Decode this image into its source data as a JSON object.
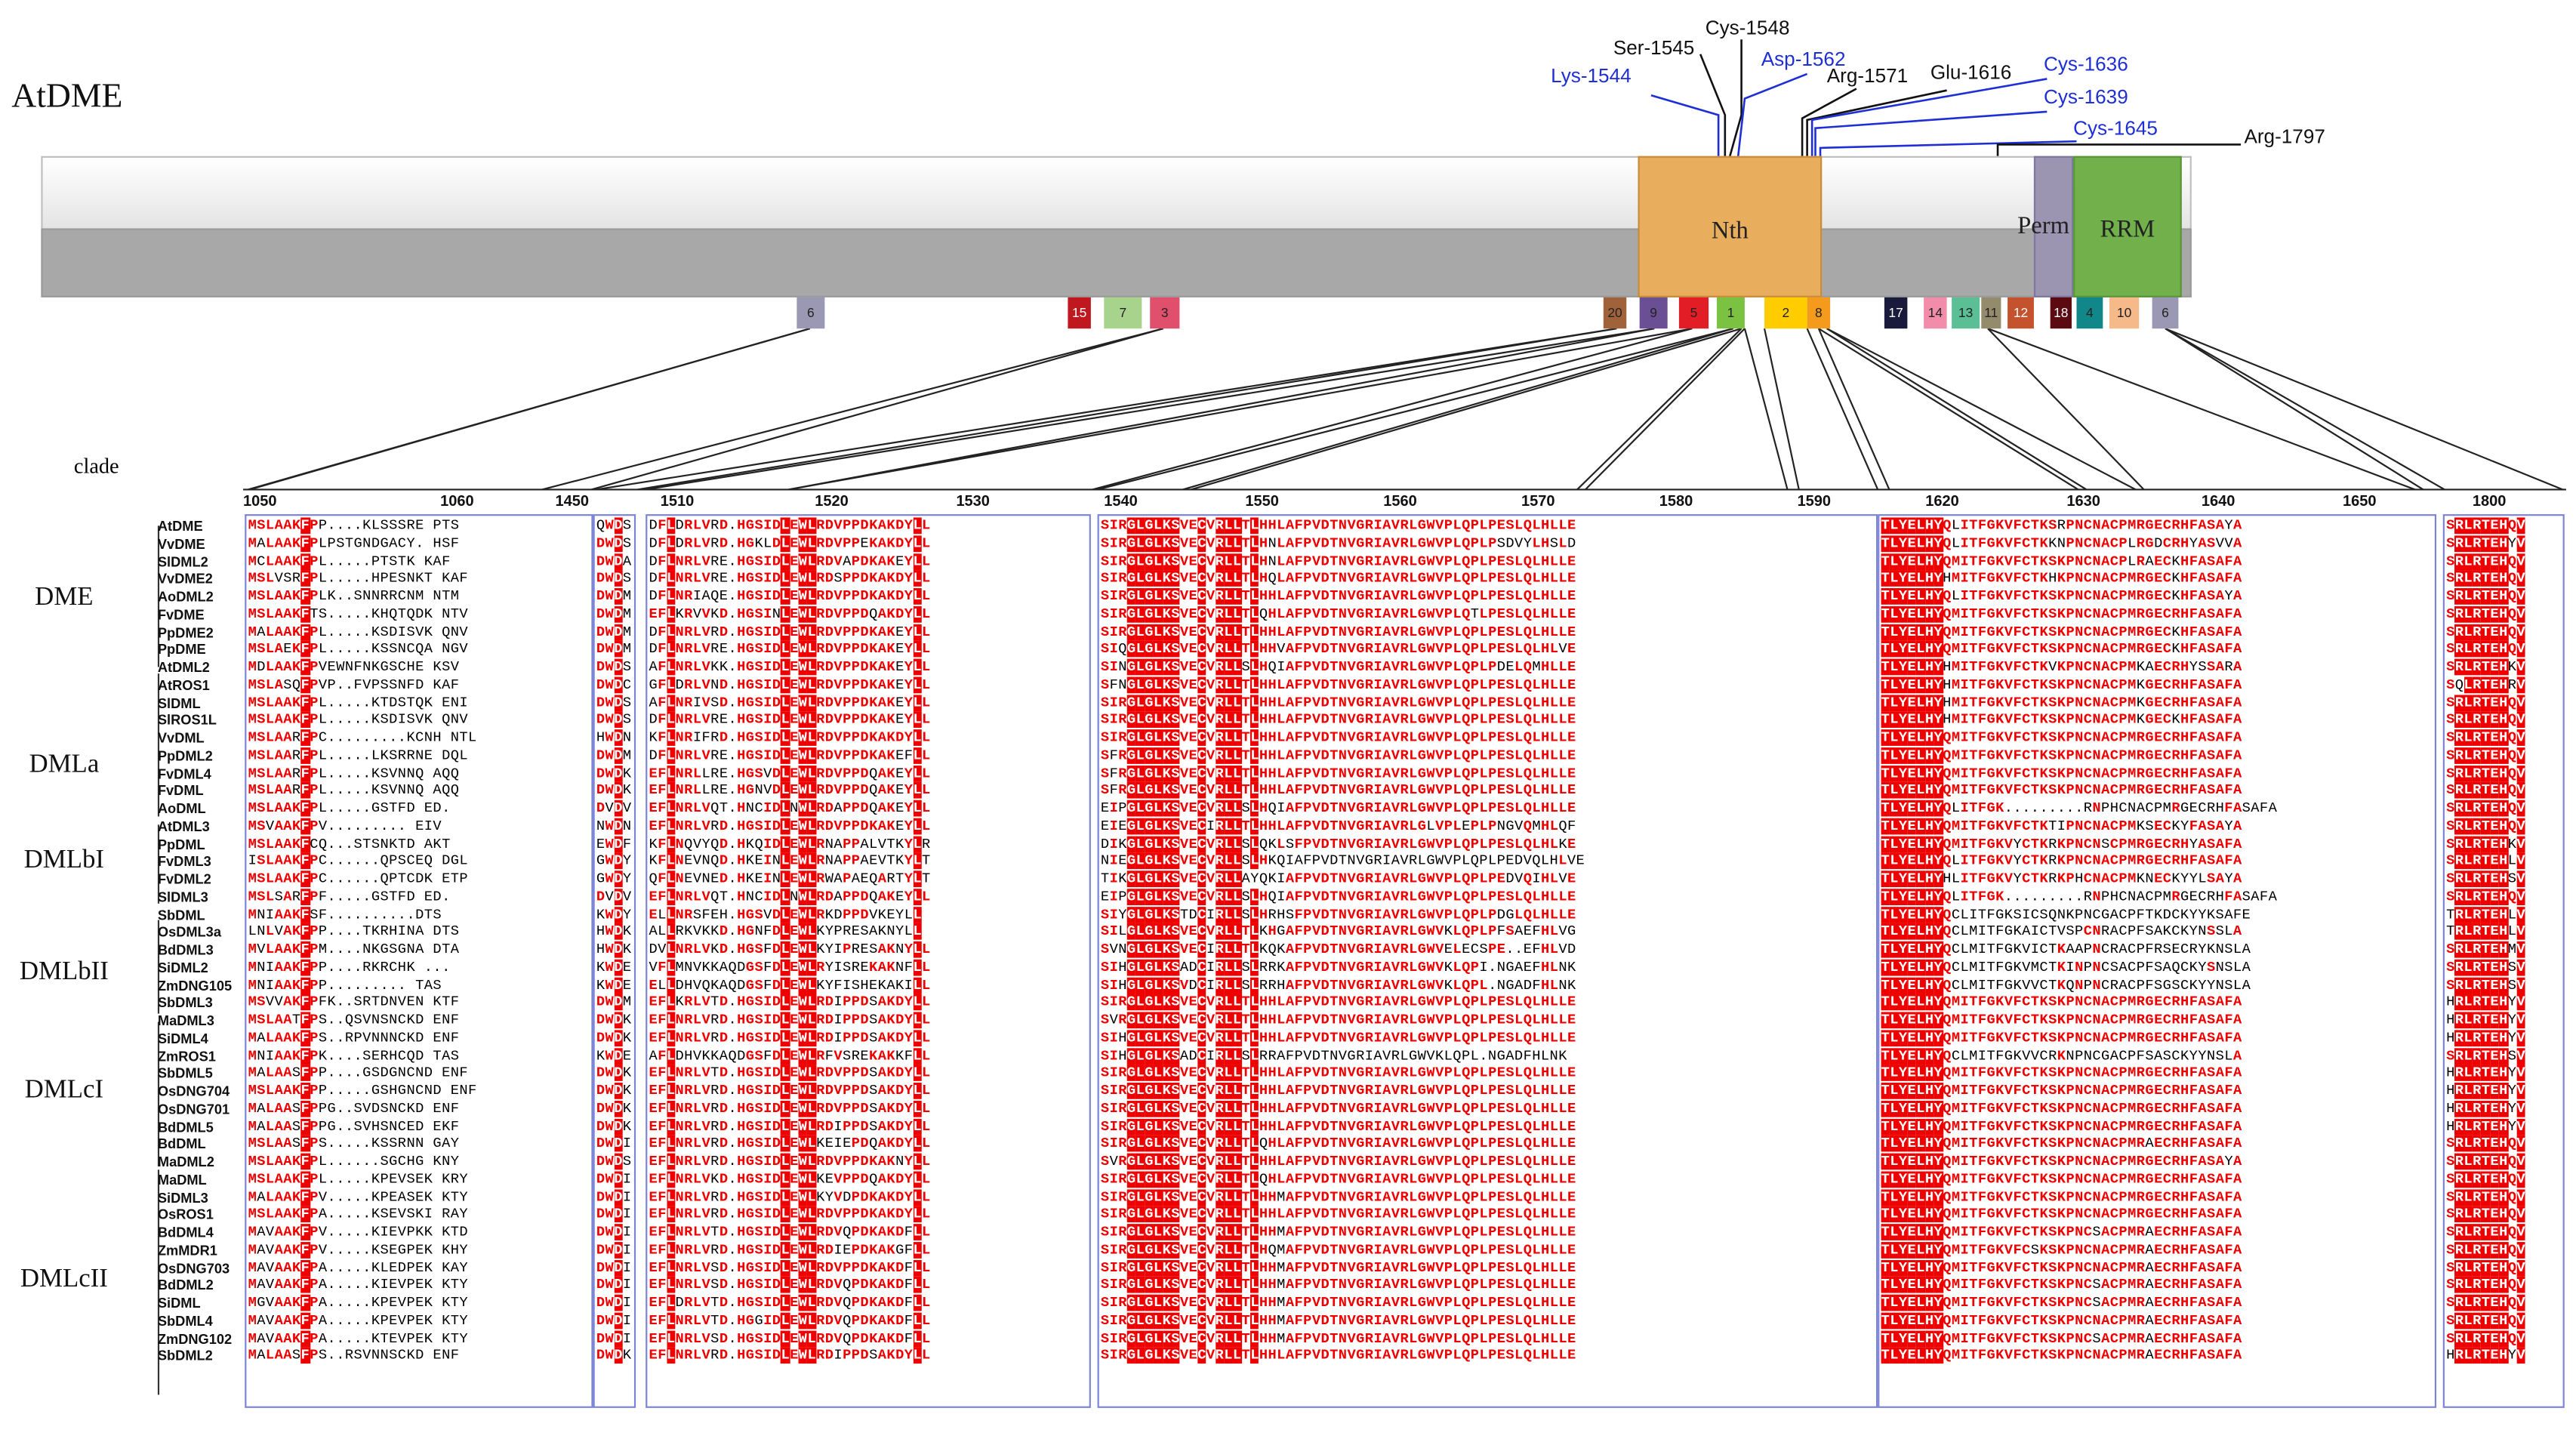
{
  "title": "AtDME",
  "clade_header": "clade",
  "domains": [
    "Nth",
    "Perm",
    "RRM"
  ],
  "sites": [
    {
      "label": "Ser-1545",
      "color": "#111111"
    },
    {
      "label": "Cys-1548",
      "color": "#111111"
    },
    {
      "label": "Lys-1544",
      "color": "#1f2fd6"
    },
    {
      "label": "Asp-1562",
      "color": "#1f2fd6"
    },
    {
      "label": "Arg-1571",
      "color": "#111111"
    },
    {
      "label": "Glu-1616",
      "color": "#111111"
    },
    {
      "label": "Cys-1636",
      "color": "#1f2fd6"
    },
    {
      "label": "Cys-1639",
      "color": "#1f2fd6"
    },
    {
      "label": "Cys-1645",
      "color": "#1f2fd6"
    },
    {
      "label": "Arg-1797",
      "color": "#111111"
    }
  ],
  "motifs": [
    {
      "label": "6",
      "color": "#9a98b3"
    },
    {
      "label": "15",
      "color": "#c0181f"
    },
    {
      "label": "7",
      "color": "#a7d38c"
    },
    {
      "label": "3",
      "color": "#e0506c"
    },
    {
      "label": "20",
      "color": "#a0623a"
    },
    {
      "label": "9",
      "color": "#6a4f95"
    },
    {
      "label": "5",
      "color": "#e21d25"
    },
    {
      "label": "1",
      "color": "#7cc242"
    },
    {
      "label": "2",
      "color": "#ffcc00"
    },
    {
      "label": "8",
      "color": "#f49a1c"
    },
    {
      "label": "17",
      "color": "#1a1a3d"
    },
    {
      "label": "14",
      "color": "#f28cab"
    },
    {
      "label": "13",
      "color": "#5bbf95"
    },
    {
      "label": "11",
      "color": "#948a6c"
    },
    {
      "label": "12",
      "color": "#c3522d"
    },
    {
      "label": "18",
      "color": "#5b0a12"
    },
    {
      "label": "4",
      "color": "#12878a"
    },
    {
      "label": "10",
      "color": "#f6b98a"
    },
    {
      "label": "6",
      "color": "#9a98b3"
    }
  ],
  "positions": [
    "1050",
    "1060",
    "1450",
    "1510",
    "1520",
    "1530",
    "1540",
    "1550",
    "1560",
    "1570",
    "1580",
    "1590",
    "1620",
    "1630",
    "1640",
    "1650",
    "1800"
  ],
  "clades": [
    "DME",
    "DMLa",
    "DMLbI",
    "DMLbII",
    "DMLcI",
    "DMLcII"
  ],
  "sequences": [
    "AtDME",
    "VvDME",
    "SlDML2",
    "VvDME2",
    "AoDML2",
    "FvDME",
    "PpDME2",
    "PpDME",
    "AtDML2",
    "AtROS1",
    "SlDML",
    "SlROS1L",
    "VvDML",
    "PpDML2",
    "FvDML4",
    "FvDML",
    "AoDML",
    "AtDML3",
    "PpDML",
    "FvDML3",
    "FvDML2",
    "SlDML3",
    "SbDML",
    "OsDML3a",
    "BdDML3",
    "SiDML2",
    "ZmDNG105",
    "SbDML3",
    "MaDML3",
    "SiDML4",
    "ZmROS1",
    "SbDML5",
    "OsDNG704",
    "OsDNG701",
    "BdDML5",
    "BdDML",
    "MaDML2",
    "MaDML",
    "SiDML3",
    "OsROS1",
    "BdDML4",
    "ZmMDR1",
    "OsDNG703",
    "BdDML2",
    "SiDML",
    "SbDML4",
    "ZmDNG102",
    "SbDML2"
  ],
  "alignment": {
    "b1": [
      "MSLAAKFPP....KLSSSRE PTS",
      "MALAAKFPLPSTGNDGACY. HSF",
      "MCLAAKFPL.....PTSTK KAF",
      "MSLVSRFPL.....HPESNKT KAF",
      "MSLAAKFPLK..SNNRRCNM NTM",
      "MSLAAKFTS.....KHQTQDK NTV",
      "MALAAKFPL.....KSDISVK QNV",
      "MSLAEKFPL.....KSSNCQA NGV",
      "MDLAAKFPVEWNFNKGSCHE KSV",
      "MSLASQFPVP..FVPSSNFD KAF",
      "MSLAAKFPL.....KTDSTQK ENI",
      "MSLAAKFPL.....KSDISVK QNV",
      "MSLAARFPC.........KCNH NTL",
      "MSLAARFPL.....LKSRRNE DQL",
      "MSLAARFPL.....KSVNNQ AQQ",
      "MSLAARFPL.....KSVNNQ AQQ",
      "MSLAAKFPL.....GSTFD ED.",
      "MSVAAKFPV......... EIV",
      "MSLAAKFCQ...STSNKTD AKT",
      "ISLAAKFPC......QPSCEQ DGL",
      "MSLAAKFPC......QPTCDK ETP",
      "MSLSARFPF.....GSTFD ED.",
      "MNIAAKFSF..........DTS",
      "LNLVAKFPP....TKRHINA DTS",
      "MVLAAKFPM....NKGSGNA DTA",
      "MNIAAKFPP....RKRCHK ...",
      "MNIAAKFPP......... TAS",
      "MSVVAKFPFK..SRTDNVEN KTF",
      "MSLAATFPS..QSVNSNCKD ENF",
      "MALAAKFPS..RPVNNNCKD ENF",
      "MNIAAKFPK....SERHCQD TAS",
      "MALAASFPP....GSDGNCND ENF",
      "MSLAAKFPP.....GSHGNCND ENF",
      "MALAASFPPG..SVDSNCKD ENF",
      "MALAASFPPG..SVHSNCED EKF",
      "MSLAASFPS.....KSSRNN GAY",
      "MSLAAKFPL......SGCHG KNY",
      "MSLAAKFPL.....KPEVSEK KRY",
      "MALAAKFPV.....KPEASEK KTY",
      "MSLAAKFPA.....KSEVSKI RAY",
      "MAVAAKFPV.....KIEVPKK KTD",
      "MAVAAKFPV.....KSEGPEK KHY",
      "MAVAAKFPA.....KLEDPEK KAY",
      "MAVAAKFPA.....KIEVPEK KTY",
      "MGVAAKFPA.....KPEVPEK KTY",
      "MAVAAKFPA.....KPEVPEK KTY",
      "MAVAAKFPA.....KTEVPEK KTY",
      "MALAASFPS..RSVNNSCKD ENF"
    ],
    "b2": [
      "QWDS",
      "DWDS",
      "DWDA",
      "DWDS",
      "DWDM",
      "DWDM",
      "DWDM",
      "DWDM",
      "DWDS",
      "DWDC",
      "DWDS",
      "DWDS",
      "HWDN",
      "DWDM",
      "DWDK",
      "DWDK",
      "DVDV",
      "NWDN",
      "EWDF",
      "GWDY",
      "GWDY",
      "DVDV",
      "KWDY",
      "HWDK",
      "HWDK",
      "KWDE",
      "KWDE",
      "DWDM",
      "DWDK",
      "DWDK",
      "KWDE",
      "DWDK",
      "DWDK",
      "DWDK",
      "DWDK",
      "DWDI",
      "DWDS",
      "DWDI",
      "DWDI",
      "DWDI",
      "DWDI",
      "DWDI",
      "DWDI",
      "DWDI",
      "DWDI",
      "DWDI",
      "DWDI",
      "DWDK"
    ],
    "b3": [
      "DFLDRLVRD.HGSIDLEWLRDVPPDKAKDYLL",
      "DFLDRLVRD.HGKLDLEWLRDVPPEKAKDYLL",
      "DFLNRLVRE.HGSIDLEWLRDVAPDKAKEYLL",
      "DFLNRLVRE.HGSIDLEWLRDSPPDKAKDYLL",
      "DFLNRIAQE.HGSIDLEWLRDVPPDKAKDYLL",
      "EFLKRVVKD.HGSINLEWLRDVPPDQAKDYLL",
      "DFLNRLVRD.HGSIDLEWLRDVPPDKAKEYLL",
      "DFLNRLVRE.HGSIDLEWLRDVPPDKAKEYLL",
      "AFLNRLVKK.HGSIDLEWLRDVPPDKAKEYLL",
      "GFLDRLVND.HGSIDLEWLRDVPPDKAKEYLL",
      "AFLNRIVSD.HGSIDLEWLRDVPPDKAKEYLL",
      "DFLNRLVRE.HGSIDLEWLRDVPPDKAKEYLL",
      "KFLNRIFRD.HGSIDLEWLRDVPPDKAKDYLL",
      "DFLNRLVRE.HGSIDLEWLRDVPPDKAKEFLL",
      "EFLNRLLRE.HGSVDLEWLRDVPPDQAKEYLL",
      "EFLNRLLRE.HGNVDLEWLRDVPPDQAKEYLL",
      "EFLNRLVQT.HNCIDLNWLRDAPPDQAKEYLL",
      "EFLNRLVRD.HGSIDLEWLRDVPPDKAKEYLL",
      "KFLNQVYQD.HKQIDLEWLRNAPPALVTKYLR",
      "KFLNEVNQD.HKEINLEWLRNAPPAEVTKYLT",
      "QFLNEVNED.HKEINLEWLRWAPAEQARTYLT",
      "EFLNRLVQT.HNCIDLNWLRDAPPDQAKEYLL",
      "ELLNRSFEH.HGSVDLEWLRKDPPDVKEYLL",
      "ALLRKVKKD.HGNFDLEWLKYPRESAKNYLL",
      "DVLNRLVKD.HGSFDLEWLKYIPRESAKNYLL",
      "VFLMNVKKAQDGSFDLEWLRYISREKAKNFLL",
      "ELLDHVQKAQDGSFDLEWLKYFISHEKAKILL",
      "EFLKRLVTD.HGSIDLEWLRDIPPDSAKDYLL",
      "EFLNRLVRD.HGSIDLEWLRDIPPDSAKDYLL",
      "EFLNRLVRD.HGSIDLEWLRDIPPDSAKDYLL",
      "AFLDHVKKAQDGSFDLEWLRFVSREKAKKFLL",
      "EFLNRLVTD.HGSIDLEWLRDVPPDSAKDYLL",
      "EFLNRLVRD.HGSIDLEWLRDVPPDSAKDYLL",
      "EFLNRLVRD.HGSIDLEWLRDVPPDSAKDYLL",
      "EFLNRLVRD.HGSIDLEWLRDIPPDSAKDYLL",
      "EFLNRLVRD.HGSIDLEWLKEIEPDQAKDYLL",
      "EFLNRLVRD.HGSIDLEWLRDVPPDKAKNYLL",
      "EFLNRLVKD.HGSIDLEWLKEVPPDQAKDYLL",
      "EFLNRLVRD.HGSIDLEWLKYVDPDKAKDYLL",
      "EFLNRLVRD.HGSIDLEWLRDVPPDKAKDYLL",
      "EFLNRLVTD.HGSIDLEWLRDVQPDKAKDFLL",
      "EFLNRLVRD.HGSIDLEWLRDIEPDKAKGFLL",
      "EFLNRLVSD.HGSIDLEWLRDVPPDKAKDFLL",
      "EFLNRLVSD.HGSIDLEWLRDVQPDKAKDFLL",
      "EFLDRLVTD.HGSIDLEWLRDVQPDKAKDFLL",
      "EFLNRLVTD.HGGIDLEWLRDVQPDKAKDFLL",
      "EFLNRLVSD.HGSIDLEWLRDVQPDKAKDFLL",
      "EFLNRLVRD.HGSIDLEWLRDIPPDSAKDYLL"
    ],
    "b4": [
      "SIRGLGLKSVECVRLLTLHHLAFPVDTNVGRIAVRLGWVPLQPLPESLQLHLLE",
      "SIRGLGLKSVECVRLLTLHNLAFPVDTNVGRIAVRLGWVPLQPLPSDVYLHSLD",
      "SIRGLGLKSVECVRLLTLHNLAFPVDTNVGRIAVRLGWVPLQPLPESLQLHLLE",
      "SIRGLGLKSVECVRLLTLHQLAFPVDTNVGRIAVRLGWVPLQPLPESLQLHLLE",
      "SIRGLGLKSVECVRLLTLHHLAFPVDTNVGRIAVRLGWVPLQPLPESLQLHLLE",
      "SIRGLGLKSVECVRLLTLQHLAFPVDTNVGRIAVRLGWVPLQTLPESLQLHLLE",
      "SIRGLGLKSVECVRLLTLHHLAFPVDTNVGRIAVRLGWVPLQPLPESLQLHLLE",
      "SIQGLGLKSVECVRLLTLHHVAFPVDTNVGRIAVRLGWVPLQPLPESLQLHLVE",
      "SINGLGLKSVECVRLLSLHQIAFPVDTNVGRIAVRLGWVPLQPLPDELQMHLLE",
      "SFNGLGLKSVECVRLLTLHHLAFPVDTNVGRIAVRLGWVPLQPLPESLQLHLLE",
      "SIRGLGLKSVECVRLLTLHHLAFPVDTNVGRIAVRLGWVPLQPLPESLQLHLLE",
      "SIRGLGLKSVECVRLLTLHHLAFPVDTNVGRIAVRLGWVPLQPLPESLQLHLLE",
      "SIRGLGLKSVECVRLLTLHHLAFPVDTNVGRIAVRLGWVPLQPLPESLQLHLLE",
      "SFRGLGLKSVECVRLLTLHHLAFPVDTNVGRIAVRLGWVPLQPLPESLQLHLLE",
      "SFRGLGLKSVECVRLLTLHHLAFPVDTNVGRIAVRLGWVPLQPLPESLQLHLLE",
      "SFRGLGLKSVECVRLLTLHHLAFPVDTNVGRIAVRLGWVPLQPLPESLQLHLLE",
      "EIPGLGLKSVECVRLLSLHQIAFPVDTNVGRIAVRLGWVPLQPLPESLQLHLLE",
      "EIEGLGLKSVECIRLLTLHHLAFPVDTNVGRIAVRLGLVPLEPLPNGVQMHLQF",
      "DIKGLGLKSVECVRLLSLQKLSFPVDTNVGRIAVRLGWVPLQPLPESLQLHLKE",
      "NIEGLGLKSVECVRLLSLHKQIAFPVDTNVGRIAVRLGWVPLQPLPEDVQLHLVE",
      "TIKGLGLKSVECVRLLAYQKIAFPVDTNVGRIAVRLGWVPLQPLPEDVQIHLVE",
      "EIPGLGLKSVECVRLLSLHQIAFPVDTNVGRIAVRLGWVPLQPLPESLQLHLLE",
      "SIYGLGLKSTDCIRLLSLHRHSFPVDTNVGRIAVRLGWVPLQPLPDGLQLHLLE",
      "SILGLGLKSVECVRLLTLKHGAFPVDTNVGRIAVRLGWVKLQPLPFSAEFHLVG",
      "SVNGLGLKSVECIRLLTLKQKAFPVDTNVGRIAVRLGWVELECSPE..EFHLVD",
      "SIHGLGLKSADCIRLLSLRRKAFPVDTNVGRIAVRLGWVKLQPI.NGAEFHLNK",
      "SIHGLGLKSVDCIRLLSLRRHAFPVDTNVGRIAVRLGWVKLQPL.NGADFHLNK",
      "SIRGLGLKSVECVRLLTLHHLAFPVDTNVGRIAVRLGWVPLQPLPESLQLHLLE",
      "SVRGLGLKSVECVRLLTLHHLAFPVDTNVGRIAVRLGWVPLQPLPESLQLHLLE",
      "SIHGLGLKSVECVRLLTLHHLAFPVDTNVGRIAVRLGWVPLQPLPESLQLHLLE",
      "SIHGLGLKSADCIRLLSLRRAFPVDTNVGRIAVRLGWVKLQPL.NGADFHLNK",
      "SIRGLGLKSVECVRLLTLHHLAFPVDTNVGRIAVRLGWVPLQPLPESLQLHLLE",
      "SIRGLGLKSVECVRLLTLHHLAFPVDTNVGRIAVRLGWVPLQPLPESLQLHLLE",
      "SIRGLGLKSVECVRLLTLHHLAFPVDTNVGRIAVRLGWVPLQPLPESLQLHLLE",
      "SIRGLGLKSVECVRLLTLHHLAFPVDTNVGRIAVRLGWVPLQPLPESLQLHLLE",
      "SIRGLGLKSVECVRLLTLQHLAFPVDTNVGRIAVRLGWVPLQPLPESLQLHLLE",
      "SVRGLGLKSVECVRLLTLHHLAFPVDTNVGRIAVRLGWVPLQPLPESLQLHLLE",
      "SIRGLGLKSVECVRLLTLQHLAFPVDTNVGRIAVRLGWVPLQPLPESLQLHLLE",
      "SIRGLGLKSVECVRLLTLHHMAFPVDTNVGRIAVRLGWVPLQPLPESLQLHLLE",
      "SIRGLGLKSVECVRLLTLHHLAFPVDTNVGRIAVRLGWVPLQPLPESLQLHLLE",
      "SIRGLGLKSVECVRLLTLHHMAFPVDTNVGRIAVRLGWVPLQPLPESLQLHLLE",
      "SIRGLGLKSVECVRLLTLHQMAFPVDTNVGRIAVRLGWVPLQPLPESLQLHLLE",
      "SIRGLGLKSVECVRLLTLHHMAFPVDTNVGRIAVRLGWVPLQPLPESLQLHLLE",
      "SIRGLGLKSVECVRLLTLHHMAFPVDTNVGRIAVRLGWVPLQPLPESLQLHLLE",
      "SIRGLGLKSVECVRLLTLHHMAFPVDTNVGRIAVRLGWVPLQPLPESLQLHLLE",
      "SIRGLGLKSVECVRLLTLHHMAFPVDTNVGRIAVRLGWVPLQPLPESLQLHLLE",
      "SIRGLGLKSVECVRLLTLHHMAFPVDTNVGRIAVRLGWVPLQPLPESLQLHLLE",
      "SIRGLGLKSVECVRLLTLHHLAFPVDTNVGRIAVRLGWVPLQPLPESLQLHLLE"
    ],
    "b5": [
      "TLYELHYQLITFGKVFCTKSRPNCNACPMRGECRHFASAYA",
      "TLYELHYQLITFGKVFCTKKNPNCNACPLRGDCRHYASVVA",
      "TLYELHYQMITFGKVFCTKSKPNCNACPLRAECKHFASAFA",
      "TLYELHYHMITFGKVFCTKHKPNCNACPMRGECKHFASAFA",
      "TLYELHYQLITFGKVFCTKSKPNCNACPMRGECKHFASAYA",
      "TLYELHYQMITFGKVFCTKSKPNCNACPMRGECRHFASAFA",
      "TLYELHYQMITFGKVFCTKSKPNCNACPMRGECKHFASAFA",
      "TLYELHYQMITFGKVFCTKSKPNCNACPMRGECKHFASAFA",
      "TLYELHYHMITFGKVFCTKVKPNCNACPMKAECRHYSSARA",
      "TLYELHYHMITFGKVFCTKSKPNCNACPMKGECRHFASAFA",
      "TLYELHYHMITFGKVFCTKSKPNCNACPMKGECRHFASAFA",
      "TLYELHYHMITFGKVFCTKSKPNCNACPMKGECKHFASAFA",
      "TLYELHYQMITFGKVFCTKSKPNCNACPMRGECRHFASAFA",
      "TLYELHYQMITFGKVFCTKSKPNCNACPMRGECRHFASAFA",
      "TLYELHYQMITFGKVFCTKSKPNCNACPMRGECRHFASAFA",
      "TLYELHYQMITFGKVFCTKSKPNCNACPMRGECRHFASAFA",
      "TLYELHYQLITFGK.........RNPHCNACPMRGECRHFASAFA",
      "TLYELHYQMITFGKVFCTKTIPNCNACPMKSECKYFASAYA",
      "TLYELHYQMITFGKVYCTKRKPNCNSCPMRGECRHYASAFA",
      "TLYELHYQLITFGKVYCTKRKPNCNACPMRGECRHFASAFA",
      "TLYELHYHLITFGKVYCTKRKPHCNACPMKNECKYYLSAYA",
      "TLYELHYQLITFGK.........RNPHCNACPMRGECRHFASAFA",
      "TLYELHYQCLITFGKSICSQNKPNCGACPFTKDCKYYKSAFE",
      "TLYELHYQCLMITFGKAICTVSPCNRACPFSAKCKYNSSLA",
      "TLYELHYQCLMITFGKVICTKAAPNCRACPFRSECRYKNSLA",
      "TLYELHYQCLMITFGKVMCTKINPNCSACPFSAQCKYSNSLA",
      "TLYELHYQCLMITFGKVVCTKQNPNCRACPFSGSCKYYNSLA",
      "TLYELHYQMITFGKVFCTKSKPNCNACPMRGECRHFASAFA",
      "TLYELHYQMITFGKVFCTKSKPNCNACPMRGECRHFASAFA",
      "TLYELHYQMITFGKVFCTKSKPNCNACPMRGECRHFASAFA",
      "TLYELHYQCLMITFGKVVCRKNPNCGACPFSASCKYYNSLA",
      "TLYELHYQMITFGKVFCTKSKPNCNACPMRGECRHFASAFA",
      "TLYELHYQMITFGKVFCTKSKPNCNACPMRGECRHFASAFA",
      "TLYELHYQMITFGKVFCTKSKPNCNACPMRGECRHFASAFA",
      "TLYELHYQMITFGKVFCTKSKPNCNACPMRGECRHFASAFA",
      "TLYELHYQMITFGKVFCTKSKPNCNACPMRAECRHFASAFA",
      "TLYELHYQMITFGKVFCTKSKPNCNACPMRGECRHFASAYA",
      "TLYELHYQMITFGKVFCTKSKPNCNACPMRGECRHFASAFA",
      "TLYELHYQMITFGKVFCTKSKPNCNACPMRGECRHFASAFA",
      "TLYELHYQMITFGKVFCTKSKPNCNACPMRGECRHFASAFA",
      "TLYELHYQMITFGKVFCTKSKPNCSACPMRAECRHFASAFA",
      "TLYELHYQMITFGKVFCSKSKPNCNACPMRAECRHFASAFA",
      "TLYELHYQMITFGKVFCTKSKPNCNACPMRAECRHFASAFA",
      "TLYELHYQMITFGKVFCTKSKPNCSACPMRAECRHFASAFA",
      "TLYELHYQMITFGKVFCTKSKPNCSACPMRAECRHFASAFA",
      "TLYELHYQMITFGKVFCTKSKPNCNACPMRAECRHFASAFA",
      "TLYELHYQMITFGKVFCTKSKPNCSACPMRAECRHFASAFA",
      "TLYELHYQMITFGKVFCTKSKPNCNACPMRAECRHFASAFA"
    ],
    "b6": [
      "SRLRTEHQV",
      "SRLRTEHYV",
      "SRLRTEHQV",
      "SRLRTEHQV",
      "SRLRTEHQV",
      "SRLRTEHQV",
      "SRLRTEHQV",
      "SRLRTEHQV",
      "SRLRTEHKV",
      "SQLRTEHRV",
      "SRLRTEHQV",
      "SRLRTEHQV",
      "SRLRTEHQV",
      "SRLRTEHQV",
      "SRLRTEHQV",
      "SRLRTEHQV",
      "SRLRTEHQV",
      "SRLRTEHQV",
      "SRLRTEHKV",
      "SRLRTEHLV",
      "SRLRTEHSV",
      "SRLRTEHQV",
      "TRLRTEHLV",
      "TRLRTEHLV",
      "SRLRTEHMV",
      "SRLRTEHSV",
      "SRLRTEHSV",
      "HRLRTEHYV",
      "HRLRTEHYV",
      "HRLRTEHYV",
      "SRLRTEHSV",
      "HRLRTEHYV",
      "HRLRTEHYV",
      "HRLRTEHYV",
      "HRLRTEHYV",
      "SRLRTEHQV",
      "SRLRTEHQV",
      "SRLRTEHQV",
      "SRLRTEHQV",
      "SRLRTEHQV",
      "SRLRTEHQV",
      "SRLRTEHQV",
      "SRLRTEHQV",
      "SRLRTEHQV",
      "SRLRTEHQV",
      "SRLRTEHQV",
      "SRLRTEHQV",
      "HRLRTEHYV"
    ]
  }
}
